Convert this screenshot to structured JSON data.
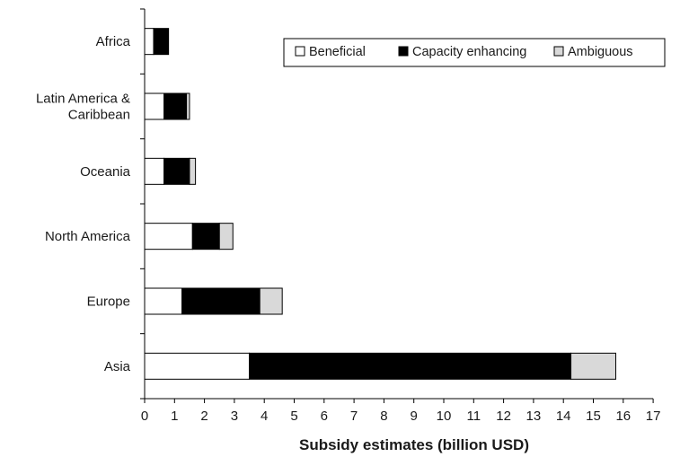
{
  "chart_data": {
    "type": "bar",
    "orientation": "horizontal",
    "stacked": true,
    "categories": [
      "Asia",
      "Europe",
      "North America",
      "Oceania",
      "Latin America & Caribbean",
      "Africa"
    ],
    "category_lines": [
      [
        "Asia"
      ],
      [
        "Europe"
      ],
      [
        "North America"
      ],
      [
        "Oceania"
      ],
      [
        "Latin America &",
        "Caribbean"
      ],
      [
        "Africa"
      ]
    ],
    "series": [
      {
        "name": "Beneficial",
        "color": "#ffffff",
        "values": [
          3.5,
          1.25,
          1.6,
          0.65,
          0.65,
          0.3
        ]
      },
      {
        "name": "Capacity enhancing",
        "color": "#000000",
        "values": [
          10.75,
          2.6,
          0.9,
          0.85,
          0.75,
          0.5
        ]
      },
      {
        "name": "Ambiguous",
        "color": "#d9d9d9",
        "values": [
          1.5,
          0.75,
          0.45,
          0.2,
          0.1,
          0.0
        ]
      }
    ],
    "xlabel": "Subsidy estimates (billion USD)",
    "xlim": [
      0,
      17
    ],
    "xticks": [
      "0",
      "1",
      "2",
      "3",
      "4",
      "5",
      "6",
      "7",
      "8",
      "9",
      "10",
      "11",
      "12",
      "13",
      "14",
      "15",
      "16",
      "17"
    ],
    "legend_position": "top-right",
    "grid": false
  }
}
